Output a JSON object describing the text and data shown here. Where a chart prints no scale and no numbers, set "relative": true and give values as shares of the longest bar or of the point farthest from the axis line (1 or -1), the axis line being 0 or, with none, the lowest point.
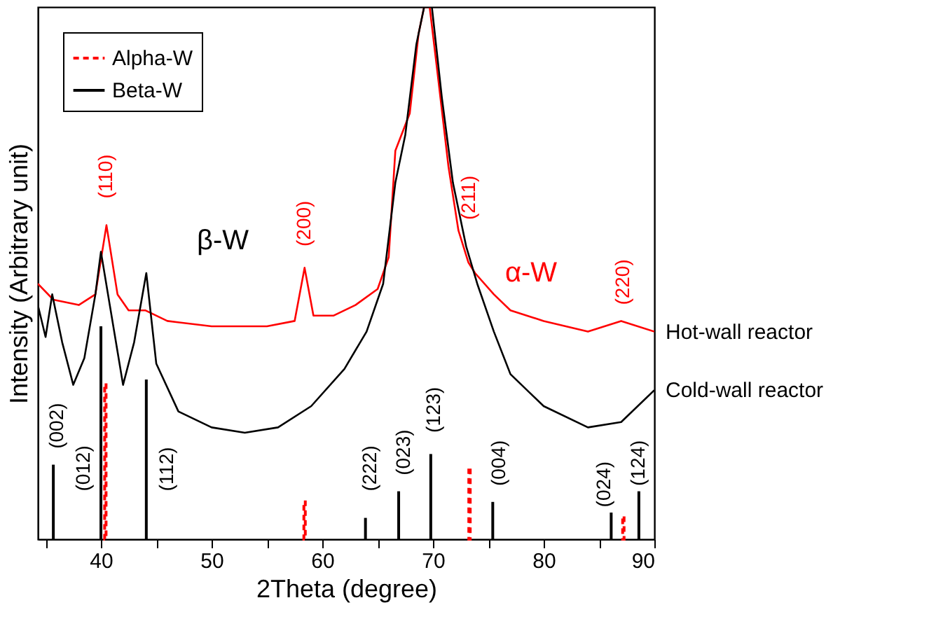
{
  "chart_data": {
    "type": "line",
    "relative": true,
    "xlabel": "2Theta (degree)",
    "ylabel": "Intensity (Arbitrary unit)",
    "xlim": [
      34.3,
      90
    ],
    "xticks": [
      {
        "value": 35,
        "label": null
      },
      40,
      {
        "value": 45,
        "label": null
      },
      50,
      {
        "value": 55,
        "label": null
      },
      60,
      {
        "value": 65,
        "label": null
      },
      70,
      {
        "value": 75,
        "label": null
      },
      80,
      {
        "value": 85,
        "label": null
      },
      90
    ],
    "legend": "top left",
    "series": [
      {
        "name": "Hot-wall reactor",
        "color": "#ff0000",
        "x": [
          34.3,
          35.7,
          38,
          39.5,
          40.5,
          41.5,
          42.5,
          44,
          46,
          50,
          55,
          57.5,
          58.4,
          59.2,
          61,
          63,
          65,
          66,
          66.6,
          67.9,
          68.7,
          69.2,
          69.7,
          70.5,
          71.4,
          72.3,
          73.2,
          73.8,
          75.5,
          77,
          80,
          84,
          87,
          90
        ],
        "values": [
          0.48,
          0.45,
          0.44,
          0.46,
          0.59,
          0.46,
          0.43,
          0.43,
          0.41,
          0.4,
          0.4,
          0.41,
          0.51,
          0.42,
          0.42,
          0.44,
          0.47,
          0.53,
          0.73,
          0.8,
          0.95,
          1,
          1,
          0.86,
          0.7,
          0.58,
          0.52,
          0.5,
          0.46,
          0.43,
          0.41,
          0.39,
          0.41,
          0.39
        ]
      },
      {
        "name": "Cold-wall reactor",
        "color": "#000000",
        "x": [
          34.3,
          35,
          35.6,
          36.5,
          37.5,
          38.5,
          39.5,
          40,
          40.8,
          42,
          43,
          44.1,
          45,
          47,
          50,
          53,
          56,
          59,
          62,
          64,
          65.5,
          66.6,
          67.5,
          68.5,
          69.2,
          69.9,
          70.8,
          71.8,
          73,
          74,
          75.5,
          77,
          80,
          84,
          87,
          90
        ],
        "values": [
          0.44,
          0.38,
          0.46,
          0.37,
          0.29,
          0.34,
          0.46,
          0.54,
          0.44,
          0.29,
          0.37,
          0.5,
          0.33,
          0.24,
          0.21,
          0.2,
          0.21,
          0.25,
          0.32,
          0.39,
          0.48,
          0.67,
          0.76,
          0.93,
          1,
          1,
          0.83,
          0.67,
          0.55,
          0.48,
          0.39,
          0.31,
          0.25,
          0.21,
          0.22,
          0.28
        ]
      },
      {
        "name": "Alpha-W",
        "type": "bar",
        "line_style": "dashed",
        "color": "#ff0000",
        "x": [
          40.4,
          58.4,
          73.3,
          87.2
        ],
        "values": [
          0.29,
          0.07,
          0.13,
          0.04
        ]
      },
      {
        "name": "Beta-W",
        "type": "bar",
        "line_style": "solid",
        "color": "#000000",
        "x": [
          35.7,
          40.0,
          44.1,
          63.9,
          66.9,
          69.8,
          75.4,
          86.1,
          88.6
        ],
        "values": [
          0.14,
          0.4,
          0.3,
          0.04,
          0.09,
          0.16,
          0.07,
          0.05,
          0.09
        ]
      }
    ],
    "annotations": [
      "(110)",
      "(200)",
      "(211)",
      "(220)",
      "(002)",
      "(012)",
      "(112)",
      "(222)",
      "(023)",
      "(123)",
      "(004)",
      "(024)",
      "(124)",
      "α-W",
      "β-W"
    ]
  }
}
